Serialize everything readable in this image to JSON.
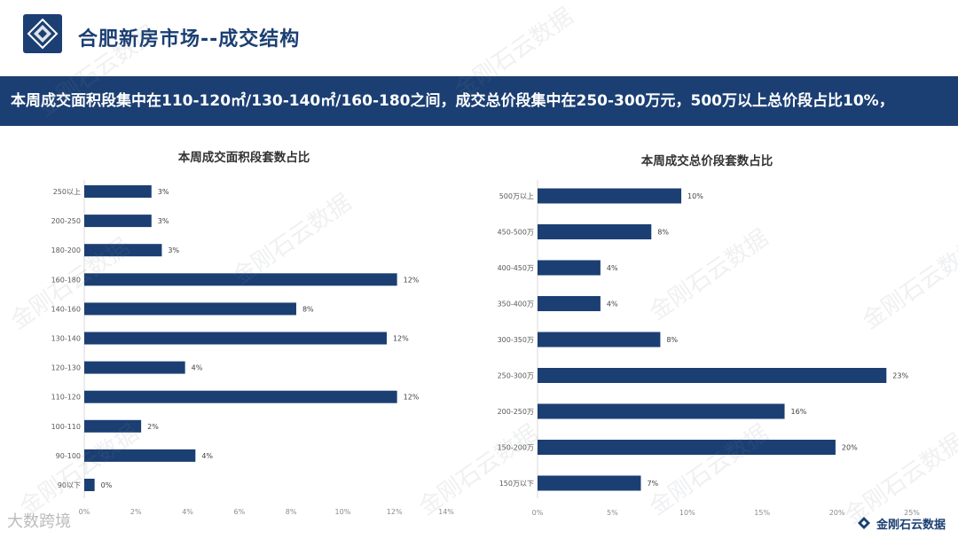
{
  "header": {
    "title": "合肥新房市场--成交结构",
    "banner": "本周成交面积段集中在110-120㎡/130-140㎡/160-180之间，成交总价段集中在250-300万元，500万以上总价段占比10%，"
  },
  "watermark": "金刚石云数据",
  "footer": {
    "left_mark": "大数跨境",
    "right_brand": "金刚石云数据"
  },
  "colors": {
    "bar": "#1b3f73",
    "accent": "#1b3f73",
    "axis": "#d9d9d9"
  },
  "chart_data": [
    {
      "type": "bar",
      "orientation": "horizontal",
      "title": "本周成交面积段套数占比",
      "categories": [
        "250以上",
        "200-250",
        "180-200",
        "160-180",
        "140-160",
        "130-140",
        "120-130",
        "110-120",
        "100-110",
        "90-100",
        "90以下"
      ],
      "values": [
        3,
        3,
        3,
        12,
        8,
        12,
        4,
        12,
        2,
        4,
        0
      ],
      "data_labels": [
        "3%",
        "3%",
        "3%",
        "12%",
        "8%",
        "12%",
        "4%",
        "12%",
        "2%",
        "4%",
        "0%"
      ],
      "bar_lengths": [
        2.6,
        2.6,
        3.0,
        12.1,
        8.2,
        11.7,
        3.9,
        12.1,
        2.2,
        4.3,
        0.4
      ],
      "xlim": [
        0,
        14
      ],
      "xticks": [
        "0%",
        "2%",
        "4%",
        "6%",
        "8%",
        "10%",
        "12%",
        "14%"
      ],
      "xlabel": "",
      "ylabel": "",
      "grid": false,
      "legend": "none"
    },
    {
      "type": "bar",
      "orientation": "horizontal",
      "title": "本周成交总价段套数占比",
      "categories": [
        "500万以上",
        "450-500万",
        "400-450万",
        "350-400万",
        "300-350万",
        "250-300万",
        "200-250万",
        "150-200万",
        "150万以下"
      ],
      "values": [
        10,
        8,
        4,
        4,
        8,
        23,
        16,
        20,
        7
      ],
      "data_labels": [
        "10%",
        "8%",
        "4%",
        "4%",
        "8%",
        "23%",
        "16%",
        "20%",
        "7%"
      ],
      "bar_lengths": [
        9.6,
        7.6,
        4.2,
        4.2,
        8.2,
        23.3,
        16.5,
        19.9,
        6.9
      ],
      "xlim": [
        0,
        25
      ],
      "xticks": [
        "0%",
        "5%",
        "10%",
        "15%",
        "20%",
        "25%"
      ],
      "xlabel": "",
      "ylabel": "",
      "grid": false,
      "legend": "none"
    }
  ]
}
